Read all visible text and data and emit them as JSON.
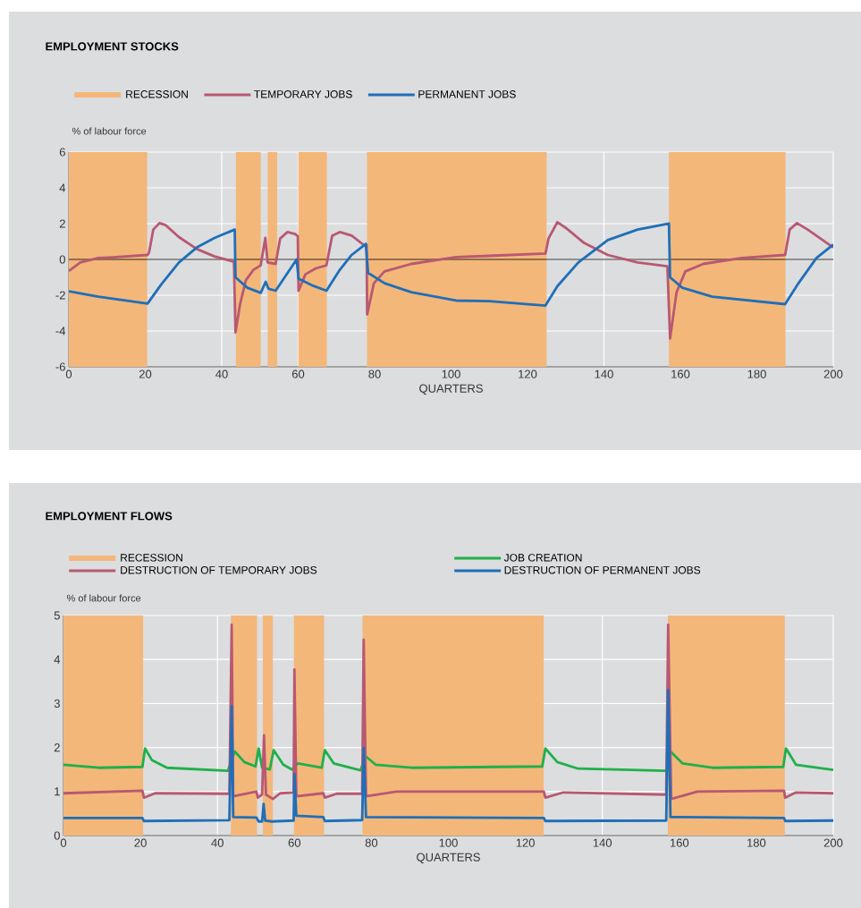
{
  "chart_data": [
    {
      "type": "line",
      "title": "EMPLOYMENT STOCKS",
      "xlabel": "QUARTERS",
      "ylabel": "% of labour force",
      "xlim": [
        0,
        200
      ],
      "xticks": [
        0,
        20,
        40,
        60,
        80,
        100,
        120,
        140,
        160,
        180,
        200
      ],
      "ylim": [
        -6,
        6
      ],
      "yticks": [
        -6,
        -4,
        -2,
        0,
        2,
        4,
        6
      ],
      "grid": true,
      "legend": "top left",
      "bands": [
        {
          "axis": "x",
          "from": 0,
          "to": 20.5,
          "label": "RECESSION",
          "color": "#f4b77a"
        },
        {
          "axis": "x",
          "from": 43.7,
          "to": 50.2,
          "color": "#f4b77a"
        },
        {
          "axis": "x",
          "from": 52,
          "to": 54.5,
          "color": "#f4b77a"
        },
        {
          "axis": "x",
          "from": 60,
          "to": 67.5,
          "color": "#f4b77a"
        },
        {
          "axis": "x",
          "from": 78,
          "to": 125,
          "color": "#f4b77a"
        },
        {
          "axis": "x",
          "from": 157,
          "to": 187.5,
          "color": "#f4b77a"
        }
      ],
      "ref_lines": [
        {
          "axis": "y",
          "value": 0,
          "color": "#000000"
        }
      ],
      "series": [
        {
          "name": "TEMPORARY JOBS",
          "color": "#b85872",
          "x": [
            0,
            3,
            7.7,
            11.6,
            20.6,
            21,
            22.1,
            23.7,
            25.3,
            28.8,
            33.5,
            38.1,
            43.2,
            43.6,
            44.8,
            46.3,
            48.3,
            50.2,
            51.4,
            52,
            54.1,
            55.3,
            57.2,
            59.2,
            59.9,
            60.1,
            61.9,
            64.6,
            67.4,
            68.9,
            70.9,
            74,
            77.5,
            77.9,
            78.05,
            79.8,
            82.6,
            89.6,
            101.3,
            109.9,
            124.7,
            125.5,
            127.8,
            130.1,
            134.8,
            141,
            148.8,
            156.6,
            157.3,
            159,
            161.3,
            166,
            176.1,
            187.4,
            188.6,
            190.5,
            193.3,
            200
          ],
          "values": [
            -0.65,
            -0.17,
            0.08,
            0.12,
            0.25,
            0.4,
            1.67,
            2.03,
            1.92,
            1.25,
            0.58,
            0.17,
            -0.13,
            -4.08,
            -2.5,
            -1.17,
            -0.58,
            -0.33,
            1.2,
            -0.17,
            -0.25,
            1.17,
            1.53,
            1.42,
            1.3,
            -1.75,
            -0.83,
            -0.5,
            -0.33,
            1.33,
            1.53,
            1.33,
            0.75,
            0.8,
            -3.08,
            -1.33,
            -0.67,
            -0.25,
            0.13,
            0.2,
            0.33,
            1.17,
            2.08,
            1.75,
            0.92,
            0.25,
            -0.17,
            -0.38,
            -4.42,
            -1.83,
            -0.67,
            -0.25,
            0.08,
            0.25,
            1.67,
            2.03,
            1.67,
            0.67
          ]
        },
        {
          "name": "PERMANENT JOBS",
          "color": "#1f6fb8",
          "x": [
            0,
            7.7,
            20.6,
            24.1,
            28.8,
            33.5,
            38.1,
            43.4,
            43.6,
            46.7,
            50.2,
            51.5,
            52.2,
            54.1,
            59.6,
            60.1,
            63.9,
            67.4,
            70.9,
            74,
            77.7,
            78.3,
            82.6,
            89.6,
            101.3,
            109.9,
            124.7,
            127.8,
            133.3,
            141,
            148.8,
            157,
            157.3,
            160.5,
            168.3,
            187.4,
            190.9,
            195.6,
            200
          ],
          "values": [
            -1.78,
            -2.08,
            -2.47,
            -1.42,
            -0.17,
            0.67,
            1.2,
            1.67,
            -1.0,
            -1.58,
            -1.87,
            -1.25,
            -1.63,
            -1.75,
            0,
            -1.08,
            -1.47,
            -1.75,
            -0.58,
            0.25,
            0.87,
            -0.75,
            -1.33,
            -1.83,
            -2.3,
            -2.33,
            -2.58,
            -1.5,
            -0.17,
            1.08,
            1.67,
            2.0,
            -1.0,
            -1.58,
            -2.08,
            -2.5,
            -1.33,
            0.08,
            0.83
          ]
        }
      ]
    },
    {
      "type": "line",
      "title": "EMPLOYMENT FLOWS",
      "xlabel": "QUARTERS",
      "ylabel": "% of labour force",
      "xlim": [
        0,
        200
      ],
      "xticks": [
        0,
        20,
        40,
        60,
        80,
        100,
        120,
        140,
        160,
        180,
        200
      ],
      "ylim": [
        0,
        5
      ],
      "yticks": [
        0,
        1,
        2,
        3,
        4,
        5
      ],
      "grid": true,
      "legend": "top left",
      "bands": [
        {
          "axis": "x",
          "from": 0,
          "to": 20.7,
          "label": "RECESSION",
          "color": "#f4b77a"
        },
        {
          "axis": "x",
          "from": 43.5,
          "to": 50.3,
          "color": "#f4b77a"
        },
        {
          "axis": "x",
          "from": 51.8,
          "to": 54.4,
          "color": "#f4b77a"
        },
        {
          "axis": "x",
          "from": 59.8,
          "to": 67.7,
          "color": "#f4b77a"
        },
        {
          "axis": "x",
          "from": 77.7,
          "to": 124.8,
          "color": "#f4b77a"
        },
        {
          "axis": "x",
          "from": 157,
          "to": 187.4,
          "color": "#f4b77a"
        }
      ],
      "series": [
        {
          "name": "JOB CREATION",
          "color": "#1fb04a",
          "x": [
            0,
            9.1,
            20.5,
            21.2,
            23,
            26.9,
            42.7,
            44.5,
            47,
            49.9,
            50.7,
            51.6,
            53.6,
            54.6,
            57.1,
            59.4,
            60.9,
            67.1,
            67.9,
            70.2,
            77.2,
            78.4,
            81.1,
            90.4,
            124.4,
            125.2,
            128.3,
            133.7,
            156.6,
            157.7,
            160.8,
            168.6,
            187,
            187.7,
            190.3,
            200
          ],
          "values": [
            1.61,
            1.54,
            1.56,
            1.98,
            1.71,
            1.54,
            1.47,
            1.91,
            1.67,
            1.57,
            1.98,
            1.54,
            1.5,
            1.94,
            1.61,
            1.5,
            1.64,
            1.54,
            1.94,
            1.64,
            1.48,
            1.81,
            1.61,
            1.54,
            1.57,
            1.98,
            1.67,
            1.52,
            1.47,
            1.91,
            1.64,
            1.54,
            1.56,
            1.98,
            1.61,
            1.49
          ]
        },
        {
          "name": "DESTRUCTION OF TEMPORARY JOBS",
          "color": "#b85872",
          "x": [
            0,
            20.5,
            20.9,
            23.8,
            43.1,
            43.7,
            44.1,
            50.1,
            50.5,
            51.6,
            52.1,
            52.6,
            54.4,
            56.3,
            59.8,
            60,
            60.5,
            67.5,
            67.9,
            71,
            77.6,
            78,
            78.6,
            86.5,
            124.8,
            125.2,
            129.9,
            156.6,
            157.1,
            157.9,
            164.7,
            187.2,
            187.5,
            190.3,
            200
          ],
          "values": [
            0.96,
            1.02,
            0.86,
            0.96,
            0.95,
            4.79,
            0.89,
            1.0,
            0.86,
            0.93,
            2.28,
            0.93,
            0.83,
            0.96,
            0.98,
            3.77,
            0.89,
            0.96,
            0.86,
            0.95,
            0.95,
            4.45,
            0.89,
            1.0,
            1.0,
            0.86,
            0.98,
            0.93,
            4.79,
            0.83,
            1.0,
            1.02,
            0.86,
            0.98,
            0.96
          ]
        },
        {
          "name": "DESTRUCTION OF PERMANENT JOBS",
          "color": "#1f6fb8",
          "x": [
            0,
            20.5,
            20.9,
            43.1,
            43.7,
            44.1,
            50.1,
            50.7,
            51.6,
            52,
            52.4,
            54.2,
            59.8,
            60,
            60.5,
            67.5,
            67.9,
            77.6,
            78,
            78.6,
            124.8,
            125.2,
            156.6,
            157.1,
            157.7,
            187.2,
            187.5,
            200
          ],
          "values": [
            0.4,
            0.4,
            0.33,
            0.35,
            2.94,
            0.42,
            0.41,
            0.32,
            0.32,
            0.72,
            0.34,
            0.32,
            0.34,
            1.4,
            0.45,
            0.42,
            0.33,
            0.35,
            1.99,
            0.42,
            0.4,
            0.33,
            0.34,
            3.3,
            0.42,
            0.4,
            0.33,
            0.34
          ]
        }
      ]
    }
  ]
}
